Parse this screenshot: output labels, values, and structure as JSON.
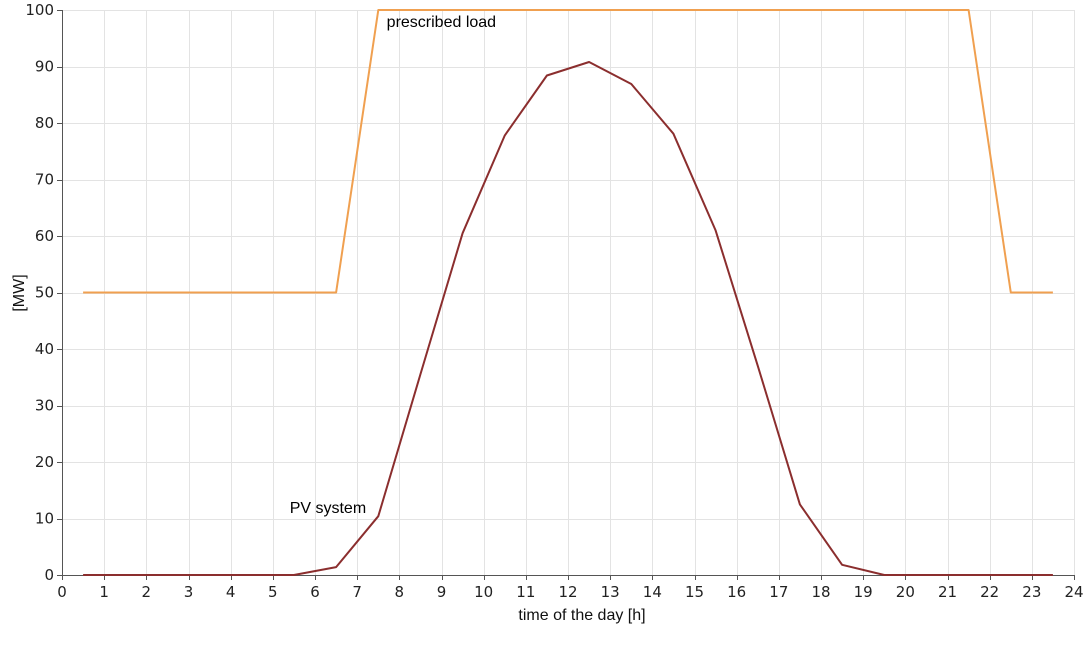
{
  "chart_data": {
    "type": "line",
    "title": "",
    "xlabel": "time of the day [h]",
    "ylabel": "[MW]",
    "xlim": [
      0,
      24
    ],
    "ylim": [
      0,
      100
    ],
    "x_ticks": [
      0,
      1,
      2,
      3,
      4,
      5,
      6,
      7,
      8,
      9,
      10,
      11,
      12,
      13,
      14,
      15,
      16,
      17,
      18,
      19,
      20,
      21,
      22,
      23,
      24
    ],
    "y_ticks": [
      0,
      10,
      20,
      30,
      40,
      50,
      60,
      70,
      80,
      90,
      100
    ],
    "x_tick_labels": [
      "0",
      "1",
      "2",
      "3",
      "4",
      "5",
      "6",
      "7",
      "8",
      "9",
      "10",
      "11",
      "12",
      "13",
      "14",
      "15",
      "16",
      "17",
      "18",
      "19",
      "20",
      "21",
      "22",
      "23",
      "24"
    ],
    "y_tick_labels": [
      "0",
      "10",
      "20",
      "30",
      "40",
      "50",
      "60",
      "70",
      "80",
      "90",
      "100"
    ],
    "grid": true,
    "series": [
      {
        "name": "prescribed load",
        "color": "#f0a050",
        "x": [
          0.5,
          6.5,
          7.5,
          21.5,
          22.5,
          23.5
        ],
        "y": [
          50,
          50,
          100,
          100,
          50,
          50
        ]
      },
      {
        "name": "PV system",
        "color": "#8b2e2e",
        "x": [
          0.5,
          1.5,
          2.5,
          3.5,
          4.5,
          5.5,
          6.5,
          7.5,
          8.5,
          9.5,
          10.5,
          11.5,
          12.5,
          13.5,
          14.5,
          15.5,
          16.5,
          17.5,
          18.5,
          19.5,
          20.5,
          21.5,
          22.5,
          23.5
        ],
        "y": [
          0,
          0,
          0,
          0,
          0,
          0,
          1.4,
          10.4,
          35.5,
          60.5,
          77.8,
          88.4,
          90.8,
          86.9,
          78.1,
          61.0,
          37.0,
          12.5,
          1.8,
          0,
          0,
          0,
          0,
          0
        ]
      }
    ],
    "annotations": [
      {
        "text": "prescribed load",
        "series": "prescribed load",
        "x": 7.7,
        "y": 97
      },
      {
        "text": "PV system",
        "series": "PV system",
        "x": 5.4,
        "y": 11
      }
    ]
  }
}
